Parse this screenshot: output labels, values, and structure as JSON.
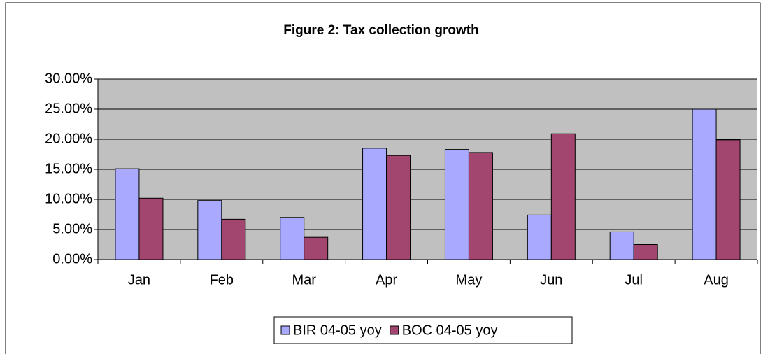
{
  "chart_data": {
    "type": "bar",
    "title": "Figure 2: Tax collection growth",
    "categories": [
      "Jan",
      "Feb",
      "Mar",
      "Apr",
      "May",
      "Jun",
      "Jul",
      "Aug"
    ],
    "series": [
      {
        "name": "BIR 04-05 yoy",
        "color": "#a9a9ff",
        "values": [
          15.1,
          9.8,
          7.0,
          18.5,
          18.3,
          7.4,
          4.6,
          25.0
        ]
      },
      {
        "name": "BOC 04-05 yoy",
        "color": "#a3466f",
        "values": [
          10.2,
          6.7,
          3.7,
          17.3,
          17.8,
          20.9,
          2.5,
          19.9
        ]
      }
    ],
    "ylim": [
      0,
      30
    ],
    "yticks": [
      {
        "value": 0,
        "label": "0.00%"
      },
      {
        "value": 5,
        "label": "5.00%"
      },
      {
        "value": 10,
        "label": "10.00%"
      },
      {
        "value": 15,
        "label": "15.00%"
      },
      {
        "value": 20,
        "label": "20.00%"
      },
      {
        "value": 25,
        "label": "25.00%"
      },
      {
        "value": 30,
        "label": "30.00%"
      }
    ],
    "grid": true,
    "legend": "bottom"
  }
}
